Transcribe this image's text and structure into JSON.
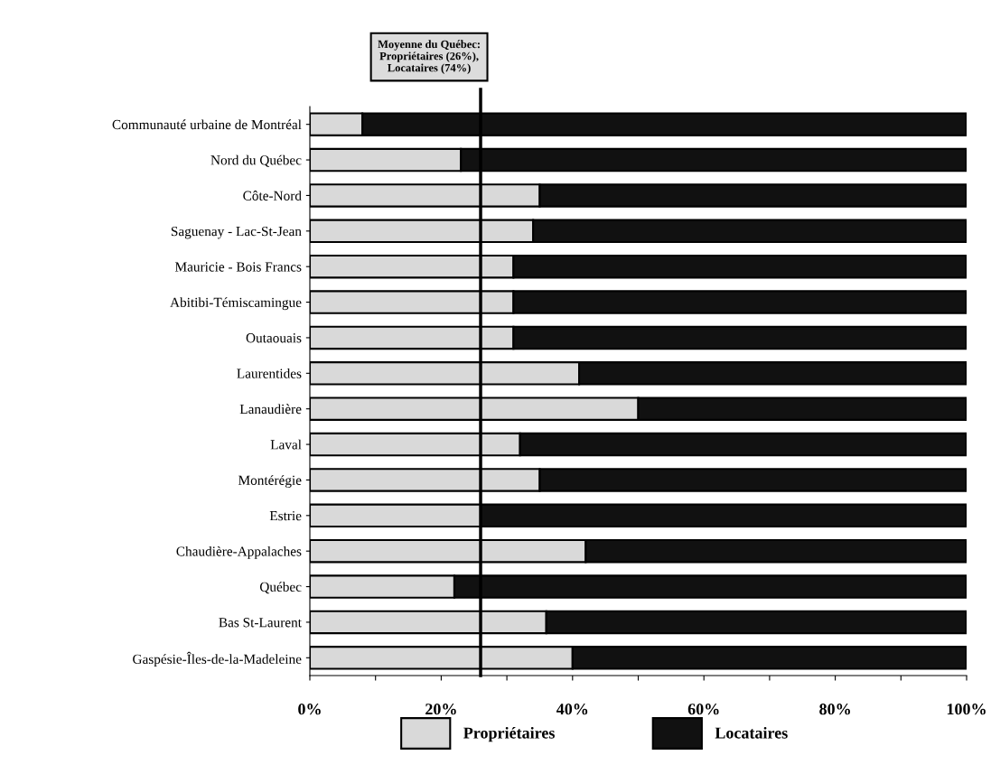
{
  "chart_data": {
    "type": "bar",
    "orientation": "horizontal",
    "stacked": true,
    "categories": [
      "Communauté urbaine de Montréal",
      "Nord du Québec",
      "Côte-Nord",
      "Saguenay - Lac-St-Jean",
      "Mauricie - Bois Francs",
      "Abitibi-Témiscamingue",
      "Outaouais",
      "Laurentides",
      "Lanaudière",
      "Laval",
      "Montérégie",
      "Estrie",
      "Chaudière-Appalaches",
      "Québec",
      "Bas St-Laurent",
      "Gaspésie-Îles-de-la-Madeleine"
    ],
    "series": [
      {
        "name": "Propriétaires",
        "color": "#d9d9d9",
        "values": [
          8,
          23,
          35,
          34,
          31,
          31,
          31,
          41,
          50,
          32,
          35,
          26,
          42,
          22,
          36,
          40
        ]
      },
      {
        "name": "Locataires",
        "color": "#111111",
        "values": [
          92,
          77,
          65,
          66,
          69,
          69,
          69,
          59,
          50,
          68,
          65,
          74,
          58,
          78,
          64,
          60
        ]
      }
    ],
    "xlim": [
      0,
      100
    ],
    "xticks": [
      {
        "value": 0,
        "label": "0%"
      },
      {
        "value": 10,
        "label": null
      },
      {
        "value": 20,
        "label": "20%"
      },
      {
        "value": 30,
        "label": null
      },
      {
        "value": 40,
        "label": "40%"
      },
      {
        "value": 50,
        "label": null
      },
      {
        "value": 60,
        "label": "60%"
      },
      {
        "value": 70,
        "label": null
      },
      {
        "value": 80,
        "label": "80%"
      },
      {
        "value": 90,
        "label": null
      },
      {
        "value": 100,
        "label": "100%"
      }
    ],
    "ref_lines": [
      {
        "axis": "x",
        "value": 26,
        "label": "Moyenne du Québec:\nPropriétaires (26%),\nLocataires (74%)",
        "color": "#000000"
      }
    ],
    "grid": false,
    "legend": "bottom"
  }
}
